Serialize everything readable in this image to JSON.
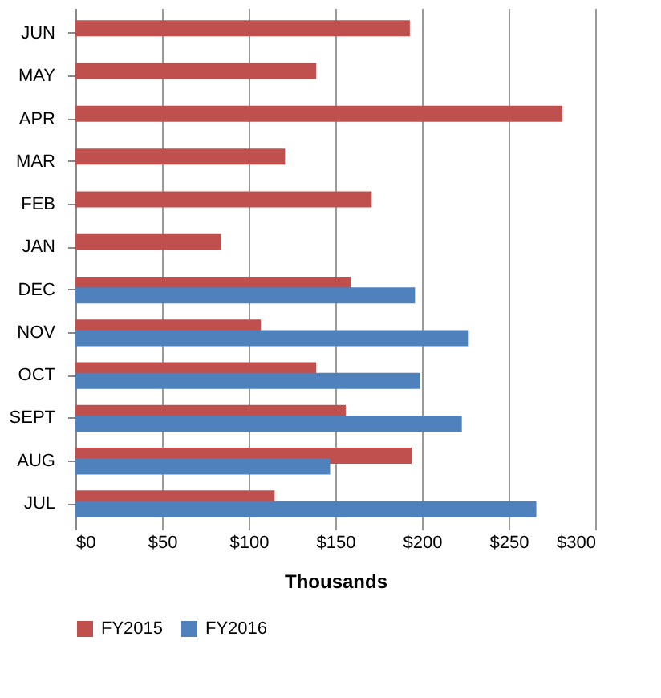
{
  "chart_data": {
    "type": "bar",
    "orientation": "horizontal",
    "xlabel": "Thousands",
    "categories": [
      "JUN",
      "MAY",
      "APR",
      "MAR",
      "FEB",
      "JAN",
      "DEC",
      "NOV",
      "OCT",
      "SEPT",
      "AUG",
      "JUL"
    ],
    "series": [
      {
        "name": "FY2015",
        "color": "#c0504d",
        "values": [
          193,
          139,
          281,
          121,
          171,
          84,
          159,
          107,
          139,
          156,
          194,
          115
        ]
      },
      {
        "name": "FY2016",
        "color": "#4f81bd",
        "values": [
          null,
          null,
          null,
          null,
          null,
          null,
          196,
          227,
          199,
          223,
          147,
          266
        ]
      }
    ],
    "xlim": [
      0,
      300
    ],
    "xticks": [
      {
        "value": 0,
        "label": "$0"
      },
      {
        "value": 50,
        "label": "$50"
      },
      {
        "value": 100,
        "label": "$100"
      },
      {
        "value": 150,
        "label": "$150"
      },
      {
        "value": 200,
        "label": "$200"
      },
      {
        "value": 250,
        "label": "$250"
      },
      {
        "value": 300,
        "label": "$300"
      }
    ],
    "grid": "x",
    "legend": "bottom"
  }
}
